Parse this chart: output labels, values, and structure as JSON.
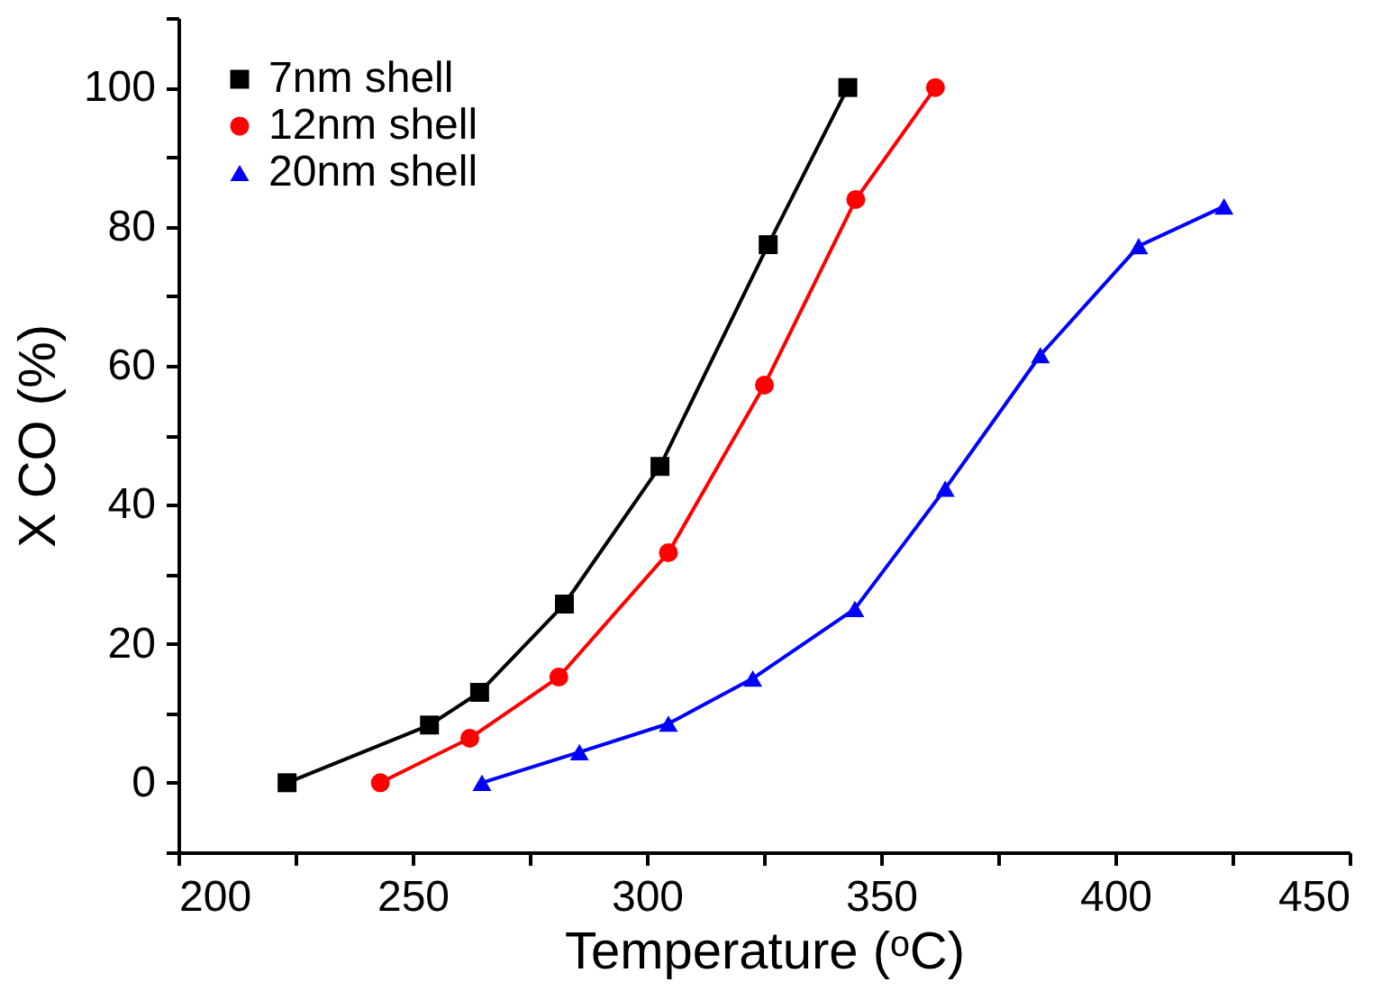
{
  "chart_data": {
    "type": "line",
    "xlabel": "Temperature (ᵒC)",
    "ylabel": "X CO (%)",
    "xlim": [
      200,
      450
    ],
    "ylim": [
      -10,
      110
    ],
    "xticks": [
      200,
      {
        "value": 225,
        "label": null
      },
      250,
      {
        "value": 275,
        "label": null
      },
      300,
      {
        "value": 325,
        "label": null
      },
      350,
      {
        "value": 375,
        "label": null
      },
      400,
      {
        "value": 425,
        "label": null
      },
      450
    ],
    "yticks": [
      {
        "value": -10,
        "label": null
      },
      0,
      {
        "value": 10,
        "label": null
      },
      20,
      {
        "value": 30,
        "label": null
      },
      40,
      {
        "value": 50,
        "label": null
      },
      60,
      {
        "value": 70,
        "label": null
      },
      80,
      {
        "value": 90,
        "label": null
      },
      100,
      {
        "value": 110,
        "label": null
      }
    ],
    "grid": false,
    "legend": "top left",
    "series": [
      {
        "name": "7nm shell",
        "color": "#000000",
        "marker": "square",
        "x": [
          223.2,
          253.6,
          264.3,
          282.4,
          302.8,
          325.9,
          342.9
        ],
        "values": [
          0,
          8.3,
          13,
          25.7,
          45.5,
          77.4,
          100
        ]
      },
      {
        "name": "12nm shell",
        "color": "#ff0000",
        "marker": "circle",
        "x": [
          243.1,
          262.2,
          281.2,
          304.6,
          325.1,
          344.6,
          361.6
        ],
        "values": [
          0,
          6.4,
          15.2,
          33.1,
          57.2,
          83.9,
          100
        ]
      },
      {
        "name": "20nm shell",
        "color": "#0000ff",
        "marker": "triangle",
        "x": [
          264.8,
          285.6,
          304.6,
          322.6,
          344.4,
          363.7,
          384,
          405,
          423.2
        ],
        "values": [
          0,
          4.4,
          8.5,
          15,
          25,
          42.3,
          61.5,
          77.2,
          82.9
        ]
      }
    ]
  }
}
